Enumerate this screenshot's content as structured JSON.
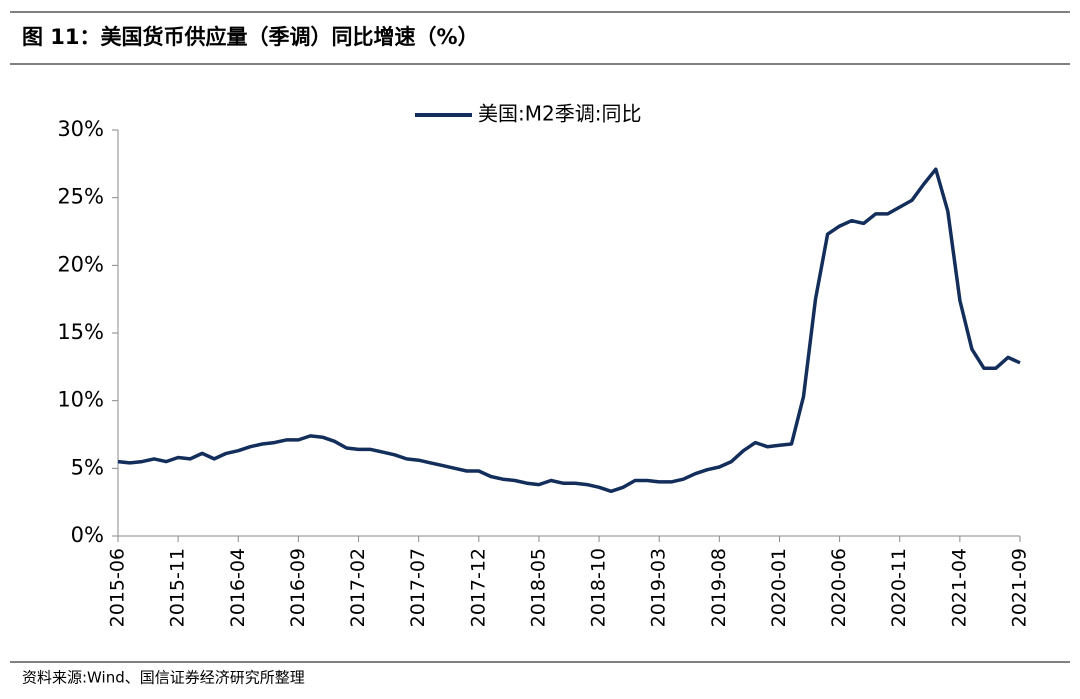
{
  "chart_data": {
    "type": "line",
    "title": "图 11：美国货币供应量（季调）同比增速（%）",
    "source": "资料来源:Wind、国信证券经济研究所整理",
    "categories": [
      "2015-06",
      null,
      null,
      null,
      null,
      "2015-11",
      null,
      null,
      null,
      null,
      "2016-04",
      null,
      null,
      null,
      null,
      "2016-09",
      null,
      null,
      null,
      null,
      "2017-02",
      null,
      null,
      null,
      null,
      "2017-07",
      null,
      null,
      null,
      null,
      "2017-12",
      null,
      null,
      null,
      null,
      "2018-05",
      null,
      null,
      null,
      null,
      "2018-10",
      null,
      null,
      null,
      null,
      "2019-03",
      null,
      null,
      null,
      null,
      "2019-08",
      null,
      null,
      null,
      null,
      "2020-01",
      null,
      null,
      null,
      null,
      "2020-06",
      null,
      null,
      null,
      null,
      "2020-11",
      null,
      null,
      null,
      null,
      "2021-04",
      null,
      null,
      null,
      null,
      "2021-09"
    ],
    "series": [
      {
        "name": "美国:M2季调:同比",
        "color": "#142e5c",
        "values": [
          5.5,
          5.4,
          5.5,
          5.7,
          5.5,
          5.8,
          5.7,
          6.1,
          5.7,
          6.1,
          6.3,
          6.6,
          6.8,
          6.9,
          7.1,
          7.1,
          7.4,
          7.3,
          7.0,
          6.5,
          6.4,
          6.4,
          6.2,
          6.0,
          5.7,
          5.6,
          5.4,
          5.2,
          5.0,
          4.8,
          4.8,
          4.4,
          4.2,
          4.1,
          3.9,
          3.8,
          4.1,
          3.9,
          3.9,
          3.8,
          3.6,
          3.3,
          3.6,
          4.1,
          4.1,
          4.0,
          4.0,
          4.2,
          4.6,
          4.9,
          5.1,
          5.5,
          6.3,
          6.9,
          6.6,
          6.7,
          6.8,
          10.3,
          17.5,
          22.3,
          22.9,
          23.3,
          23.1,
          23.8,
          23.8,
          24.3,
          24.8,
          26.0,
          27.1,
          24.0,
          17.4,
          13.8,
          12.4,
          12.4,
          13.2,
          12.8
        ]
      }
    ],
    "ylim": [
      0,
      30
    ],
    "yticks": [
      {
        "value": 0,
        "label": "0%"
      },
      {
        "value": 5,
        "label": "5%"
      },
      {
        "value": 10,
        "label": "10%"
      },
      {
        "value": 15,
        "label": "15%"
      },
      {
        "value": 20,
        "label": "20%"
      },
      {
        "value": 25,
        "label": "25%"
      },
      {
        "value": 30,
        "label": "30%"
      }
    ],
    "legend": "top"
  }
}
